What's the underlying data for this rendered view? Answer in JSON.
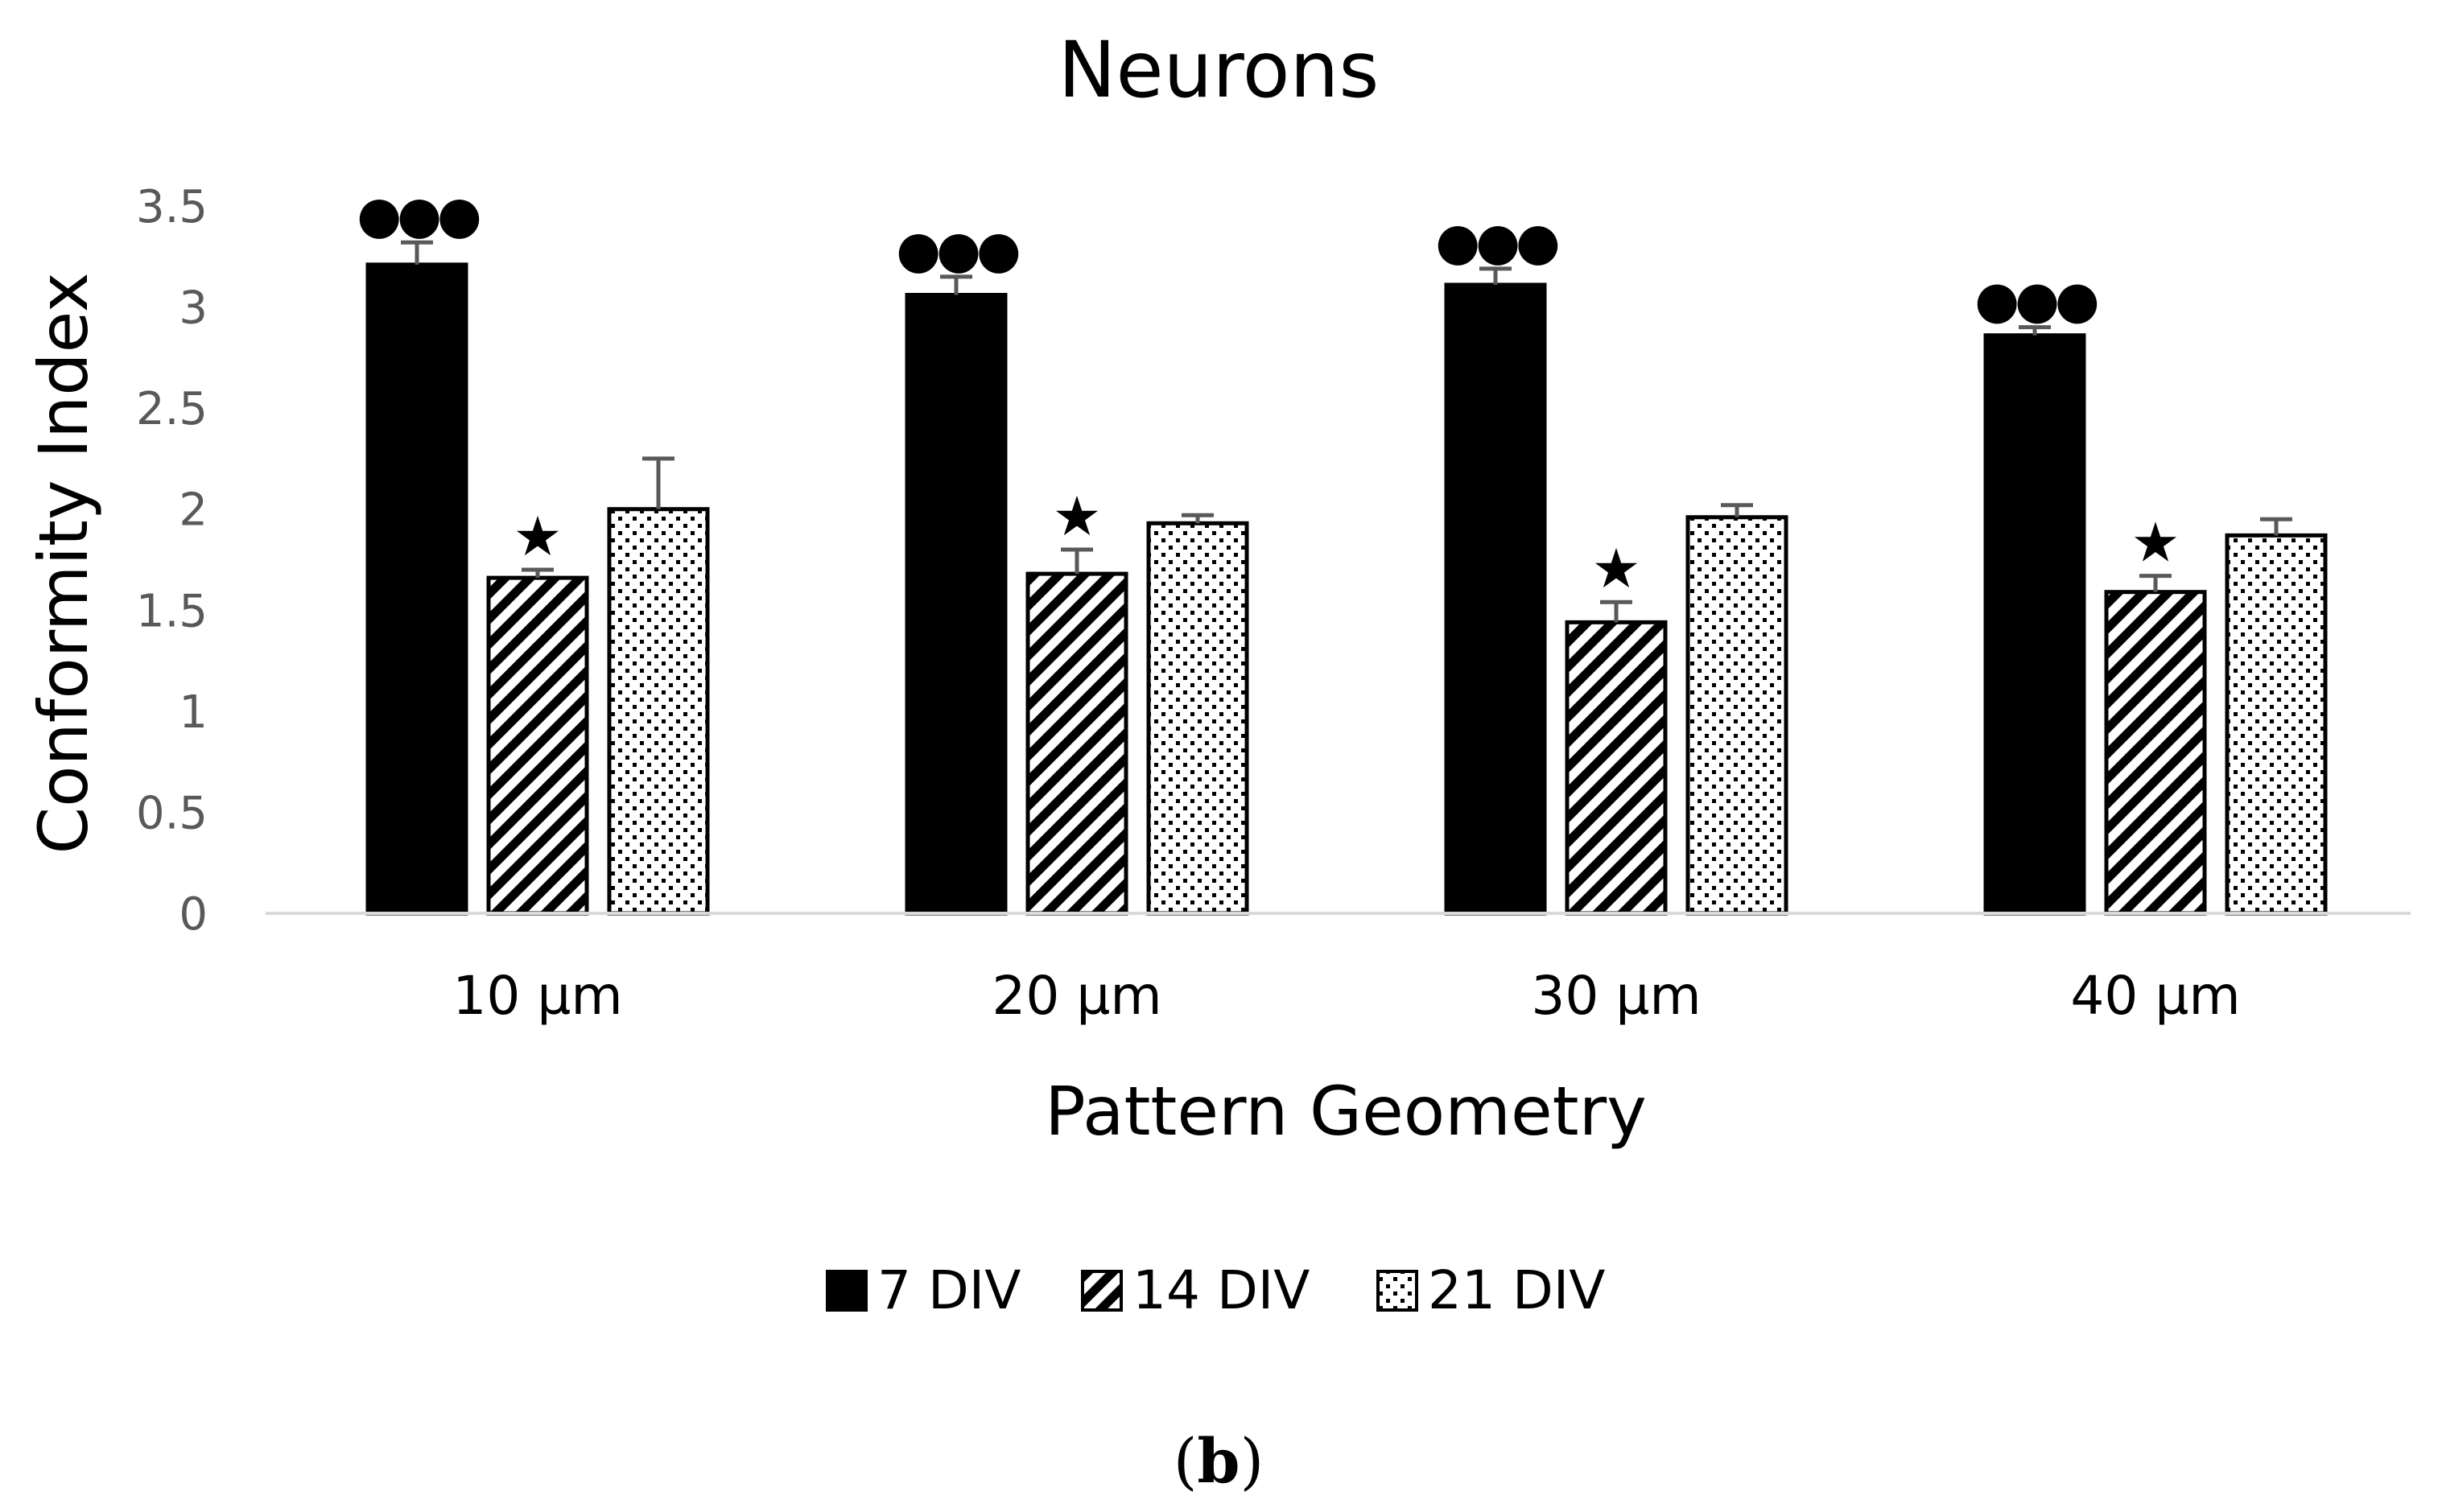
{
  "chart_data": {
    "type": "bar",
    "title": "Neurons",
    "xlabel": "Pattern Geometry",
    "ylabel": "Conformity Index",
    "ylim": [
      0,
      3.5
    ],
    "yticks": [
      "0",
      "0.5",
      "1",
      "1.5",
      "2",
      "2.5",
      "3",
      "3.5"
    ],
    "grid": false,
    "legend_position": "bottom",
    "categories": [
      "10 µm",
      "20 µm",
      "30 µm",
      "40 µm"
    ],
    "series": [
      {
        "name": "7 DIV",
        "fill": "solid",
        "values": [
          3.21,
          3.06,
          3.11,
          2.86
        ],
        "errors": [
          0.11,
          0.09,
          0.08,
          0.04
        ],
        "annotation": "●●●"
      },
      {
        "name": "14 DIV",
        "fill": "hatch",
        "values": [
          1.66,
          1.68,
          1.44,
          1.59
        ],
        "errors": [
          0.04,
          0.12,
          0.1,
          0.08
        ],
        "annotation": "★"
      },
      {
        "name": "21 DIV",
        "fill": "dots",
        "values": [
          2.0,
          1.93,
          1.96,
          1.87
        ],
        "errors": [
          0.25,
          0.04,
          0.06,
          0.08
        ],
        "annotation": ""
      }
    ],
    "caption_open": "(",
    "caption_letter": "b",
    "caption_close": ")",
    "colors": {
      "bar_fill": "#000000",
      "bar_stroke": "#000000",
      "error_bar": "#595959",
      "axis_line": "#d9d9d9",
      "tick_text": "#595959"
    }
  }
}
